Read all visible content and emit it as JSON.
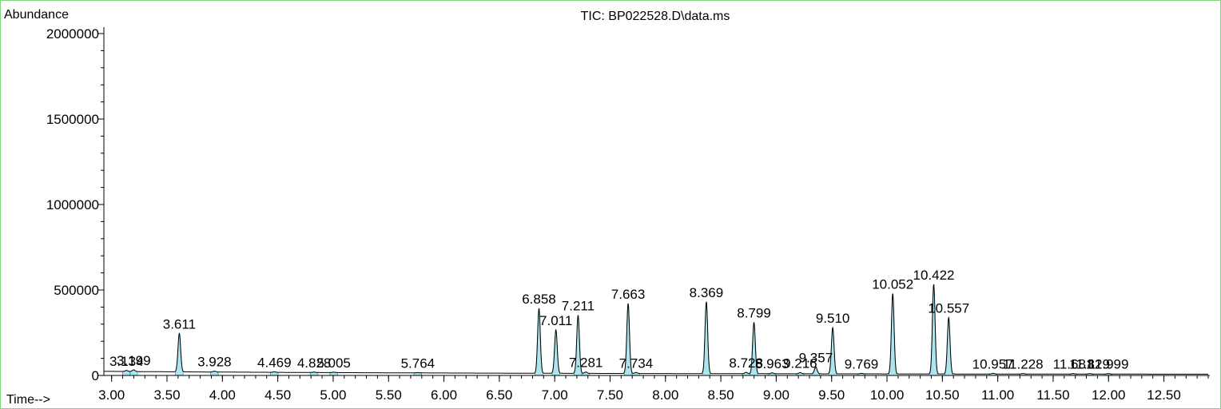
{
  "chart_data": {
    "type": "line",
    "title": "TIC: BP022528.D\\data.ms",
    "ylabel": "Abundance",
    "xlabel": "Time-->",
    "xlim": [
      2.93,
      12.9
    ],
    "ylim": [
      0,
      2000000
    ],
    "x_ticks": [
      "3.00",
      "3.50",
      "4.00",
      "4.50",
      "5.00",
      "5.50",
      "6.00",
      "6.50",
      "7.00",
      "7.50",
      "8.00",
      "8.50",
      "9.00",
      "9.50",
      "10.00",
      "10.50",
      "11.00",
      "11.50",
      "12.00",
      "12.50"
    ],
    "y_ticks": [
      "0",
      "500000",
      "1000000",
      "1500000",
      "2000000"
    ],
    "baseline": 18000,
    "peaks": [
      {
        "rt": 3.134,
        "height": 6000,
        "label": "3.134"
      },
      {
        "rt": 3.199,
        "height": 10000,
        "label": "3.199"
      },
      {
        "rt": 3.611,
        "height": 225000,
        "label": "3.611"
      },
      {
        "rt": 3.928,
        "height": 5000,
        "label": "3.928"
      },
      {
        "rt": 4.469,
        "height": 3000,
        "label": "4.469"
      },
      {
        "rt": 4.828,
        "height": 2500,
        "label": "4.828"
      },
      {
        "rt": 5.005,
        "height": 2500,
        "label": "5.005"
      },
      {
        "rt": 5.764,
        "height": 2000,
        "label": "5.764"
      },
      {
        "rt": 6.858,
        "height": 380000,
        "label": "6.858"
      },
      {
        "rt": 7.011,
        "height": 255000,
        "label": "7.011"
      },
      {
        "rt": 7.211,
        "height": 340000,
        "label": "7.211"
      },
      {
        "rt": 7.281,
        "height": 8000,
        "label": "7.281"
      },
      {
        "rt": 7.663,
        "height": 410000,
        "label": "7.663"
      },
      {
        "rt": 7.734,
        "height": 6000,
        "label": "7.734"
      },
      {
        "rt": 8.369,
        "height": 420000,
        "label": "8.369"
      },
      {
        "rt": 8.728,
        "height": 8000,
        "label": "8.728"
      },
      {
        "rt": 8.799,
        "height": 300000,
        "label": "8.799"
      },
      {
        "rt": 8.963,
        "height": 5000,
        "label": "8.963"
      },
      {
        "rt": 9.216,
        "height": 7000,
        "label": "9.216"
      },
      {
        "rt": 9.357,
        "height": 40000,
        "label": "9.357"
      },
      {
        "rt": 9.51,
        "height": 270000,
        "label": "9.510"
      },
      {
        "rt": 9.769,
        "height": 3000,
        "label": "9.769"
      },
      {
        "rt": 10.052,
        "height": 470000,
        "label": "10.052"
      },
      {
        "rt": 10.422,
        "height": 525000,
        "label": "10.422"
      },
      {
        "rt": 10.557,
        "height": 330000,
        "label": "10.557"
      },
      {
        "rt": 10.957,
        "height": 4000,
        "label": "10.957"
      },
      {
        "rt": 11.228,
        "height": 3000,
        "label": "11.228"
      },
      {
        "rt": 11.681,
        "height": 3000,
        "label": "11.681"
      },
      {
        "rt": 11.829,
        "height": 3000,
        "label": "11.829"
      },
      {
        "rt": 11.999,
        "height": 3000,
        "label": "11.999"
      }
    ]
  },
  "colors": {
    "trace": "#000000",
    "integration_fill": "#19b3c8",
    "frame": "#7cd97c",
    "axis": "#000000"
  }
}
